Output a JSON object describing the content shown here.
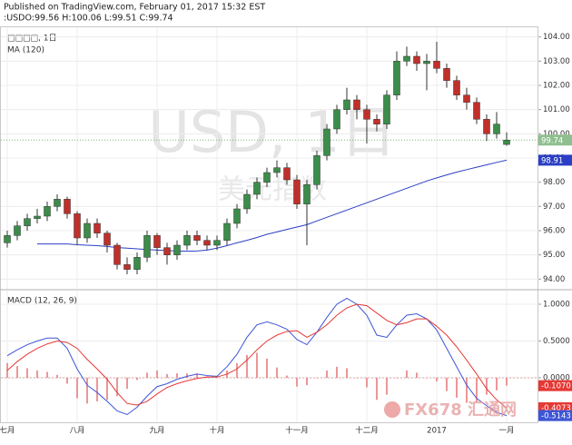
{
  "header": {
    "published": "Published on TradingView.com, February 01, 2017 15:32 EST",
    "symbol_line": ":USDO:99.56 H:100.06 L:99.51 C:99.74"
  },
  "logo": "FX678 汇通网",
  "chart_data": [
    {
      "type": "candlestick",
      "legend": "□□□□, 1日",
      "ma_label": "MA (120)",
      "watermark": "USD, 1日",
      "watermark_sub": "美元指数",
      "categories": [
        "七月",
        null,
        null,
        null,
        null,
        null,
        null,
        "八月",
        null,
        null,
        null,
        null,
        null,
        null,
        null,
        "九月",
        null,
        null,
        null,
        null,
        null,
        "十月",
        null,
        null,
        null,
        null,
        null,
        null,
        null,
        "十一月",
        null,
        null,
        null,
        null,
        null,
        null,
        "十二月",
        null,
        null,
        null,
        null,
        null,
        null,
        "2017",
        null,
        null,
        null,
        null,
        null,
        null,
        "一月"
      ],
      "open": [
        95.5,
        95.8,
        96.2,
        96.5,
        96.6,
        97.0,
        97.3,
        96.7,
        95.7,
        96.3,
        95.9,
        95.4,
        94.6,
        94.4,
        94.9,
        95.8,
        95.3,
        95.0,
        95.4,
        95.8,
        95.6,
        95.4,
        95.6,
        96.3,
        96.9,
        97.5,
        98.0,
        98.4,
        98.6,
        98.1,
        97.1,
        97.9,
        99.1,
        100.2,
        101.0,
        101.4,
        101.0,
        100.6,
        100.4,
        101.6,
        103.0,
        103.2,
        102.9,
        103.0,
        102.7,
        102.2,
        101.6,
        101.3,
        100.6,
        100.0,
        99.56
      ],
      "high": [
        96.0,
        96.4,
        96.7,
        96.9,
        97.2,
        97.5,
        97.4,
        96.8,
        96.5,
        96.5,
        96.0,
        95.5,
        94.9,
        95.1,
        96.0,
        95.9,
        95.5,
        95.6,
        96.0,
        96.0,
        95.8,
        95.8,
        96.5,
        97.1,
        97.7,
        98.2,
        98.6,
        98.9,
        98.8,
        98.3,
        98.1,
        99.3,
        100.4,
        101.2,
        101.9,
        101.6,
        101.2,
        100.8,
        101.8,
        103.4,
        103.6,
        103.4,
        103.3,
        103.8,
        102.9,
        102.4,
        101.9,
        101.5,
        100.8,
        100.9,
        100.06
      ],
      "low": [
        95.3,
        95.6,
        96.0,
        96.3,
        96.4,
        96.8,
        96.5,
        95.4,
        95.5,
        95.7,
        95.1,
        94.4,
        94.2,
        94.2,
        94.7,
        95.0,
        94.6,
        94.8,
        95.2,
        95.4,
        95.2,
        95.2,
        95.4,
        96.1,
        96.7,
        97.3,
        97.8,
        98.2,
        97.9,
        96.9,
        95.4,
        97.7,
        98.9,
        100.0,
        100.8,
        100.6,
        99.6,
        100.1,
        100.2,
        101.4,
        102.8,
        102.6,
        101.8,
        102.5,
        101.9,
        101.4,
        101.0,
        100.4,
        99.7,
        99.8,
        99.51
      ],
      "close": [
        95.8,
        96.2,
        96.5,
        96.6,
        97.0,
        97.3,
        96.7,
        95.7,
        96.3,
        95.9,
        95.4,
        94.6,
        94.4,
        94.9,
        95.8,
        95.3,
        95.0,
        95.4,
        95.8,
        95.6,
        95.4,
        95.6,
        96.3,
        96.9,
        97.5,
        98.0,
        98.4,
        98.6,
        98.1,
        97.1,
        97.9,
        99.1,
        100.2,
        101.0,
        101.4,
        101.0,
        100.6,
        100.4,
        101.6,
        103.0,
        103.2,
        102.9,
        103.0,
        102.7,
        102.2,
        101.6,
        101.3,
        100.6,
        100.0,
        100.4,
        99.74
      ],
      "up_color": "#3c8c4a",
      "down_color": "#c0302b",
      "series": [
        {
          "name": "MA (120)",
          "color": "#2b3fc4",
          "values": [
            null,
            null,
            null,
            95.45,
            95.45,
            95.45,
            95.45,
            95.42,
            95.4,
            95.38,
            95.35,
            95.3,
            95.28,
            95.25,
            95.22,
            95.2,
            95.18,
            95.16,
            95.15,
            95.16,
            95.2,
            95.28,
            95.38,
            95.5,
            95.6,
            95.72,
            95.85,
            95.95,
            96.05,
            96.15,
            96.25,
            96.4,
            96.55,
            96.7,
            96.85,
            97.0,
            97.15,
            97.3,
            97.45,
            97.6,
            97.75,
            97.9,
            98.05,
            98.18,
            98.3,
            98.42,
            98.52,
            98.62,
            98.72,
            98.82,
            98.91
          ]
        }
      ],
      "last_labels": [
        {
          "value": 99.74,
          "color": "#8fbf8f"
        },
        {
          "value": 98.91,
          "color": "#2b3fc4"
        }
      ],
      "ylim": [
        93.6,
        104.4
      ],
      "yticks": [
        {
          "value": 94,
          "label": "94.00"
        },
        {
          "value": 95,
          "label": "95.00"
        },
        {
          "value": 96,
          "label": "96.00"
        },
        {
          "value": 97,
          "label": "97.00"
        },
        {
          "value": 98,
          "label": "98.00"
        },
        {
          "value": 99,
          "label": "99.00"
        },
        {
          "value": 100,
          "label": "100.00"
        },
        {
          "value": 101,
          "label": "101.00"
        },
        {
          "value": 102,
          "label": "102.00"
        },
        {
          "value": 103,
          "label": "103.00"
        },
        {
          "value": 104,
          "label": "104.00"
        }
      ],
      "grid": true
    },
    {
      "type": "macd",
      "legend": "MACD (12, 26, 9)",
      "series": [
        {
          "name": "MACD",
          "color": "#3d55d6",
          "values": [
            0.3,
            0.38,
            0.45,
            0.5,
            0.54,
            0.54,
            0.4,
            0.12,
            -0.1,
            -0.2,
            -0.32,
            -0.45,
            -0.5,
            -0.4,
            -0.25,
            -0.12,
            -0.08,
            -0.02,
            0.02,
            0.05,
            0.03,
            0.02,
            0.15,
            0.32,
            0.55,
            0.72,
            0.76,
            0.72,
            0.66,
            0.52,
            0.45,
            0.62,
            0.82,
            1.0,
            1.08,
            1.0,
            0.85,
            0.58,
            0.55,
            0.72,
            0.85,
            0.87,
            0.8,
            0.65,
            0.4,
            0.15,
            -0.1,
            -0.28,
            -0.38,
            -0.47,
            -0.5143
          ]
        },
        {
          "name": "Signal",
          "color": "#e53935",
          "values": [
            0.1,
            0.22,
            0.32,
            0.4,
            0.46,
            0.5,
            0.48,
            0.4,
            0.25,
            0.12,
            -0.02,
            -0.2,
            -0.35,
            -0.37,
            -0.32,
            -0.22,
            -0.13,
            -0.08,
            -0.04,
            -0.01,
            0.01,
            0.01,
            0.05,
            0.12,
            0.24,
            0.38,
            0.5,
            0.58,
            0.63,
            0.64,
            0.55,
            0.62,
            0.72,
            0.85,
            0.95,
            1.0,
            0.98,
            0.88,
            0.78,
            0.72,
            0.75,
            0.8,
            0.8,
            0.7,
            0.58,
            0.42,
            0.24,
            0.05,
            -0.15,
            -0.3,
            -0.4073
          ]
        },
        {
          "name": "Histogram",
          "color": "#e57373",
          "values": [
            0.2,
            0.16,
            0.13,
            0.1,
            0.08,
            0.04,
            -0.08,
            -0.28,
            -0.35,
            -0.32,
            -0.3,
            -0.25,
            -0.15,
            -0.03,
            0.07,
            0.1,
            0.05,
            0.06,
            0.06,
            0.06,
            0.02,
            0.01,
            0.1,
            0.2,
            0.31,
            0.34,
            0.26,
            0.14,
            0.03,
            -0.12,
            -0.1,
            0.0,
            0.1,
            0.15,
            0.13,
            0.0,
            -0.13,
            -0.3,
            -0.23,
            0.0,
            0.1,
            0.07,
            0.0,
            -0.05,
            -0.18,
            -0.27,
            -0.34,
            -0.33,
            -0.23,
            -0.17,
            -0.107
          ]
        }
      ],
      "last_labels": [
        {
          "value": -0.107,
          "label": "-0.1070",
          "color": "#e53935"
        },
        {
          "value": -0.4073,
          "color": "#e53935"
        },
        {
          "value": -0.5143,
          "color": "#3d55d6"
        }
      ],
      "ylim": [
        -0.605,
        1.185
      ],
      "yticks": [
        {
          "value": 1,
          "label": "1.0000"
        },
        {
          "value": 0.5,
          "label": "0.5000"
        },
        {
          "value": 0,
          "label": "0.0000"
        }
      ],
      "grid": true
    }
  ]
}
